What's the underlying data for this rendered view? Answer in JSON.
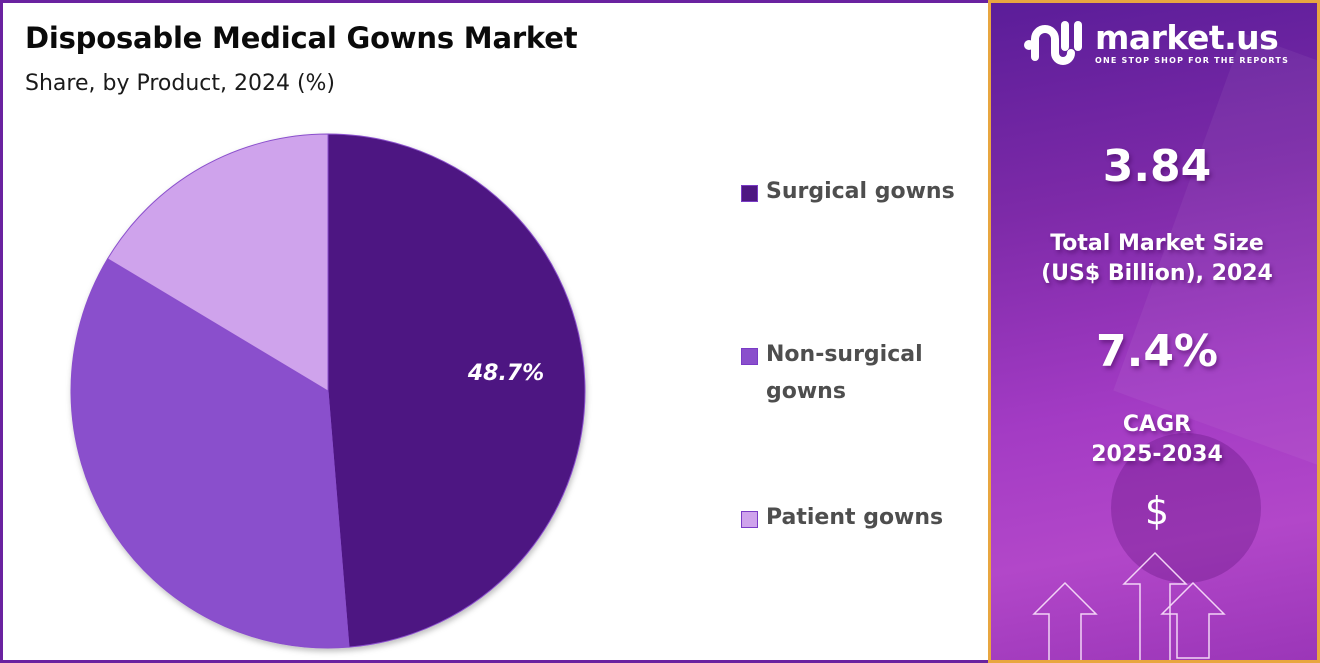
{
  "header": {
    "title": "Disposable Medical Gowns Market",
    "subtitle": "Share, by Product, 2024 (%)"
  },
  "chart_data": {
    "type": "pie",
    "title": "Disposable Medical Gowns Market",
    "subtitle": "Share, by Product, 2024 (%)",
    "categories": [
      "Surgical gowns",
      "Non-surgical gowns",
      "Patient gowns"
    ],
    "values": [
      48.7,
      34.9,
      16.4
    ],
    "colors": [
      "#4e1782",
      "#8a4fcc",
      "#cfa3ec"
    ],
    "data_labels": [
      "48.7%",
      "",
      ""
    ],
    "start_angle": "12 o'clock, clockwise",
    "legend_position": "right"
  },
  "pie": {
    "label_surgical": "48.7%"
  },
  "legend": {
    "items": [
      {
        "label_line1": "Surgical gowns",
        "label_line2": "",
        "color": "#4e1782"
      },
      {
        "label_line1": "Non-surgical",
        "label_line2": "gowns",
        "color": "#8a4fcc"
      },
      {
        "label_line1": "Patient gowns",
        "label_line2": "",
        "color": "#cfa3ec"
      }
    ]
  },
  "sidebar": {
    "logo_name": "market.us",
    "logo_tagline": "ONE STOP SHOP FOR THE REPORTS",
    "market_size_value": "3.84",
    "market_size_label_line1": "Total Market Size",
    "market_size_label_line2": "(US$ Billion), 2024",
    "cagr_value": "7.4%",
    "cagr_label_line1": "CAGR",
    "cagr_label_line2": "2025-2034",
    "currency_symbol": "$"
  }
}
